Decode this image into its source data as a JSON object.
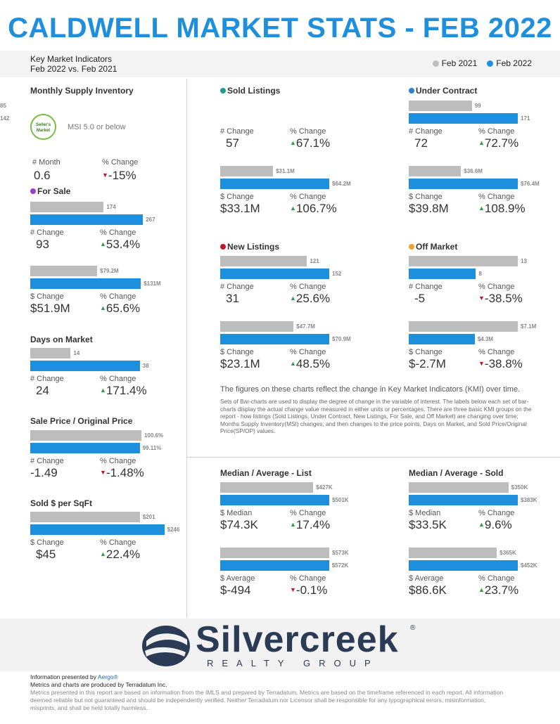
{
  "header": {
    "title": "CALDWELL MARKET STATS - FEB 2022",
    "kmi_line1": "Key Market Indicators",
    "kmi_line2": "Feb 2022 vs. Feb 2021",
    "legend": [
      {
        "label": "Feb 2021",
        "color": "#bdbdbd"
      },
      {
        "label": "Feb 2022",
        "color": "#1e8fdc"
      }
    ]
  },
  "msi": {
    "title": "Monthly Supply Inventory",
    "badge_text": "Seller's Market",
    "note": "MSI 5.0 or below",
    "lbl1": "# Month",
    "val1": "0.6",
    "lbl2": "% Change",
    "val2": "-15%",
    "dir2": "down"
  },
  "chart_data": [
    {
      "id": "for_sale_count",
      "type": "bar",
      "title": "For Sale",
      "title_dot": "#9b3fcf",
      "categories": [
        "Feb 2021",
        "Feb 2022"
      ],
      "values": [
        174,
        267
      ],
      "labels": [
        "174",
        "267"
      ],
      "stat_lbl1": "# Change",
      "stat_val1": "93",
      "stat_lbl2": "% Change",
      "stat_val2": "53.4%",
      "dir": "up"
    },
    {
      "id": "for_sale_dollar",
      "type": "bar",
      "categories": [
        "Feb 2021",
        "Feb 2022"
      ],
      "values": [
        79.2,
        131
      ],
      "labels": [
        "$79.2M",
        "$131M"
      ],
      "stat_lbl1": "$ Change",
      "stat_val1": "$51.9M",
      "stat_lbl2": "% Change",
      "stat_val2": "65.6%",
      "dir": "up"
    },
    {
      "id": "dom",
      "type": "bar",
      "title": "Days on Market",
      "categories": [
        "Feb 2021",
        "Feb 2022"
      ],
      "values": [
        14,
        38
      ],
      "labels": [
        "14",
        "38"
      ],
      "stat_lbl1": "# Change",
      "stat_val1": "24",
      "stat_lbl2": "% Change",
      "stat_val2": "171.4%",
      "dir": "up"
    },
    {
      "id": "sp_op",
      "type": "bar",
      "title": "Sale Price / Original Price",
      "categories": [
        "Feb 2021",
        "Feb 2022"
      ],
      "values": [
        100.6,
        99.11
      ],
      "labels": [
        "100.6%",
        "99.11%"
      ],
      "stat_lbl1": "# Change",
      "stat_val1": "-1.49",
      "stat_lbl2": "% Change",
      "stat_val2": "-1.48%",
      "dir": "down"
    },
    {
      "id": "sqft",
      "type": "bar",
      "title": "Sold $ per SqFt",
      "categories": [
        "Feb 2021",
        "Feb 2022"
      ],
      "values": [
        201,
        246
      ],
      "labels": [
        "$201",
        "$246"
      ],
      "stat_lbl1": "$ Change",
      "stat_val1": "$45",
      "stat_lbl2": "% Change",
      "stat_val2": "22.4%",
      "dir": "up"
    },
    {
      "id": "sold_count",
      "type": "bar",
      "title": "Sold Listings",
      "title_dot": "#1a9e8a",
      "categories": [
        "Feb 2021",
        "Feb 2022"
      ],
      "values": [
        85,
        142
      ],
      "labels": [
        "85",
        "142"
      ],
      "stat_lbl1": "# Change",
      "stat_val1": "57",
      "stat_lbl2": "% Change",
      "stat_val2": "67.1%",
      "dir": "up"
    },
    {
      "id": "sold_dollar",
      "type": "bar",
      "categories": [
        "Feb 2021",
        "Feb 2022"
      ],
      "values": [
        31.1,
        64.2
      ],
      "labels": [
        "$31.1M",
        "$64.2M"
      ],
      "stat_lbl1": "$ Change",
      "stat_val1": "$33.1M",
      "stat_lbl2": "% Change",
      "stat_val2": "106.7%",
      "dir": "up"
    },
    {
      "id": "uc_count",
      "type": "bar",
      "title": "Under Contract",
      "title_dot": "#2b7fd6",
      "categories": [
        "Feb 2021",
        "Feb 2022"
      ],
      "values": [
        99,
        171
      ],
      "labels": [
        "99",
        "171"
      ],
      "stat_lbl1": "# Change",
      "stat_val1": "72",
      "stat_lbl2": "% Change",
      "stat_val2": "72.7%",
      "dir": "up"
    },
    {
      "id": "uc_dollar",
      "type": "bar",
      "categories": [
        "Feb 2021",
        "Feb 2022"
      ],
      "values": [
        36.6,
        76.4
      ],
      "labels": [
        "$36.6M",
        "$76.4M"
      ],
      "stat_lbl1": "$ Change",
      "stat_val1": "$39.8M",
      "stat_lbl2": "% Change",
      "stat_val2": "108.9%",
      "dir": "up"
    },
    {
      "id": "new_count",
      "type": "bar",
      "title": "New Listings",
      "title_dot": "#c2182b",
      "categories": [
        "Feb 2021",
        "Feb 2022"
      ],
      "values": [
        121,
        152
      ],
      "labels": [
        "121",
        "152"
      ],
      "stat_lbl1": "# Change",
      "stat_val1": "31",
      "stat_lbl2": "% Change",
      "stat_val2": "25.6%",
      "dir": "up"
    },
    {
      "id": "new_dollar",
      "type": "bar",
      "categories": [
        "Feb 2021",
        "Feb 2022"
      ],
      "values": [
        47.7,
        70.9
      ],
      "labels": [
        "$47.7M",
        "$70.9M"
      ],
      "stat_lbl1": "$ Change",
      "stat_val1": "$23.1M",
      "stat_lbl2": "% Change",
      "stat_val2": "48.5%",
      "dir": "up"
    },
    {
      "id": "off_count",
      "type": "bar",
      "title": "Off Market",
      "title_dot": "#f0a030",
      "categories": [
        "Feb 2021",
        "Feb 2022"
      ],
      "values": [
        13,
        8
      ],
      "labels": [
        "13",
        "8"
      ],
      "stat_lbl1": "# Change",
      "stat_val1": "-5",
      "stat_lbl2": "% Change",
      "stat_val2": "-38.5%",
      "dir": "down"
    },
    {
      "id": "off_dollar",
      "type": "bar",
      "categories": [
        "Feb 2021",
        "Feb 2022"
      ],
      "values": [
        7.1,
        4.3
      ],
      "labels": [
        "$7.1M",
        "$4.3M"
      ],
      "stat_lbl1": "$ Change",
      "stat_val1": "$-2.7M",
      "stat_lbl2": "% Change",
      "stat_val2": "-38.8%",
      "dir": "down"
    },
    {
      "id": "list_median",
      "type": "bar",
      "title": "Median / Average - List",
      "categories": [
        "Feb 2021",
        "Feb 2022"
      ],
      "values": [
        427,
        501
      ],
      "labels": [
        "$427K",
        "$501K"
      ],
      "stat_lbl1": "$ Median",
      "stat_val1": "$74.3K",
      "stat_lbl2": "% Change",
      "stat_val2": "17.4%",
      "dir": "up"
    },
    {
      "id": "list_avg",
      "type": "bar",
      "categories": [
        "Feb 2021",
        "Feb 2022"
      ],
      "values": [
        573,
        572
      ],
      "labels": [
        "$573K",
        "$572K"
      ],
      "stat_lbl1": "$ Average",
      "stat_val1": "$-494",
      "stat_lbl2": "% Change",
      "stat_val2": "-0.1%",
      "dir": "down"
    },
    {
      "id": "sold_median",
      "type": "bar",
      "title": "Median / Average - Sold",
      "categories": [
        "Feb 2021",
        "Feb 2022"
      ],
      "values": [
        350,
        383
      ],
      "labels": [
        "$350K",
        "$383K"
      ],
      "stat_lbl1": "$ Median",
      "stat_val1": "$33.5K",
      "stat_lbl2": "% Change",
      "stat_val2": "9.6%",
      "dir": "up"
    },
    {
      "id": "sold_avg",
      "type": "bar",
      "categories": [
        "Feb 2021",
        "Feb 2022"
      ],
      "values": [
        365,
        452
      ],
      "labels": [
        "$365K",
        "$452K"
      ],
      "stat_lbl1": "$ Average",
      "stat_val1": "$86.6K",
      "stat_lbl2": "% Change",
      "stat_val2": "23.7%",
      "dir": "up"
    }
  ],
  "notes": {
    "title": "The figures on these charts reflect the change in Key Market Indicators (KMI) over time.",
    "body": "Sets of Bar-charts are used to display the degree of change in the variable of interest. The labels below each set of bar-charts display the actual change value measured in either units or percentages. There are three basic KMI groups on the report - how listings (Sold Listings, Under Contract, New Listings, For Sale, and Off Market) are changing over time; Months Supply Inventory(MSI) changes; and then changes to the price points, Days on Market, and Sold Price/Original Price(SP/OP) values."
  },
  "logo": {
    "word": "Silvercreek",
    "sub": "REALTY GROUP",
    "reg": "®"
  },
  "footer": {
    "line1_prefix": "Information presented by ",
    "line1_link": "Aergo®",
    "line2": "Metrics and charts are produced by Terradatum Inc.",
    "line3": "Metrics presented in this report are based on information from the IMLS and prepared by Terradatum. Metrics are based on the timeframe referenced in each report. All information deemed reliable but not guaranteed and should be independently verified. Neither Terradatum nor Licensor shall be responsible for any typographical errors, misinformation, misprints, and shall be held totally harmless."
  }
}
